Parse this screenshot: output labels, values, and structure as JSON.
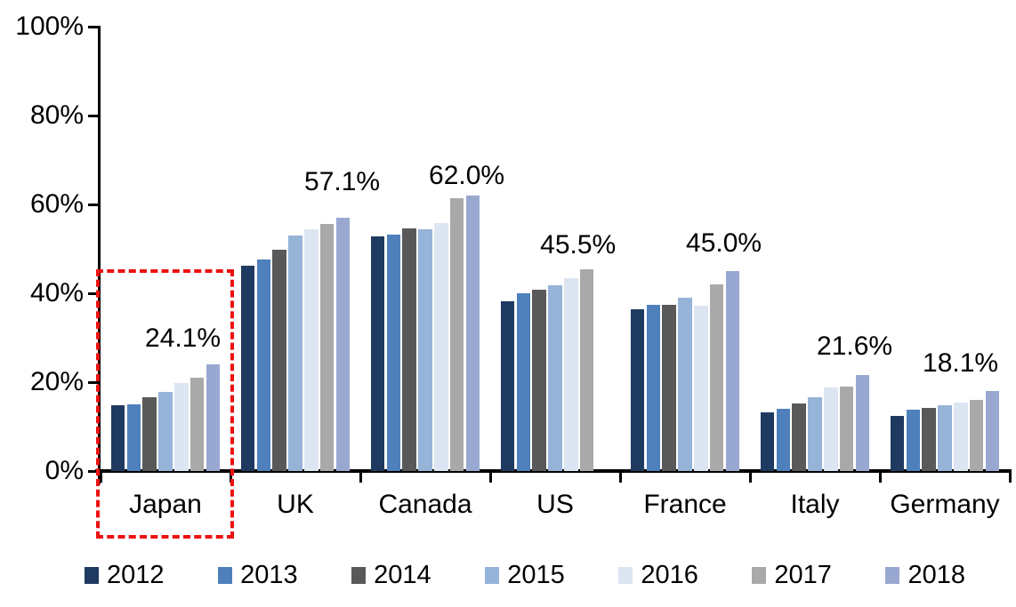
{
  "chart_data": {
    "type": "bar",
    "title": "",
    "xlabel": "",
    "ylabel": "",
    "categories": [
      "Japan",
      "UK",
      "Canada",
      "US",
      "France",
      "Italy",
      "Germany"
    ],
    "series": [
      {
        "name": "2012",
        "color": "#1F3A60",
        "values": [
          14.9,
          46.2,
          52.9,
          38.2,
          36.4,
          13.3,
          12.4
        ]
      },
      {
        "name": "2013",
        "color": "#4E80BC",
        "values": [
          15.0,
          47.7,
          53.2,
          40.0,
          37.5,
          14.1,
          13.9
        ]
      },
      {
        "name": "2014",
        "color": "#595959",
        "values": [
          16.7,
          49.8,
          54.7,
          40.8,
          37.4,
          15.3,
          14.3
        ]
      },
      {
        "name": "2015",
        "color": "#96B3D8",
        "values": [
          17.9,
          53.1,
          54.4,
          41.9,
          39.1,
          16.7,
          14.9
        ]
      },
      {
        "name": "2016",
        "color": "#DCE6F2",
        "values": [
          19.9,
          54.5,
          55.9,
          43.5,
          37.3,
          18.9,
          15.5
        ]
      },
      {
        "name": "2017",
        "color": "#A9A9A9",
        "values": [
          21.0,
          55.7,
          61.4,
          45.5,
          42.1,
          19.0,
          16.0
        ]
      },
      {
        "name": "2018",
        "color": "#98A8D0",
        "values": [
          24.1,
          57.1,
          62.0,
          null,
          45.0,
          21.6,
          18.1
        ]
      }
    ],
    "annotations": [
      {
        "category": "Japan",
        "text": "24.1%"
      },
      {
        "category": "UK",
        "text": "57.1%"
      },
      {
        "category": "Canada",
        "text": "62.0%"
      },
      {
        "category": "US",
        "text": "45.5%"
      },
      {
        "category": "France",
        "text": "45.0%"
      },
      {
        "category": "Italy",
        "text": "21.6%"
      },
      {
        "category": "Germany",
        "text": "18.1%"
      }
    ],
    "y_axis": {
      "min": 0,
      "max": 100,
      "ticks": [
        "0%",
        "20%",
        "40%",
        "60%",
        "80%",
        "100%"
      ],
      "tick_step": 20
    },
    "grid": false,
    "legend_position": "bottom",
    "highlight": {
      "category": "Japan",
      "color": "#EE1111",
      "style": "dashed"
    }
  }
}
